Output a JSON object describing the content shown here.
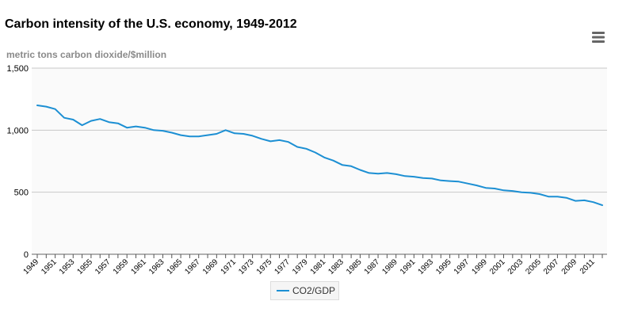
{
  "colors": {
    "series": "#1c8fd3",
    "grid": "#c8c8c8",
    "plot_background": "#fafafa",
    "axis_text": "#000000",
    "ylabel_text": "#8a8a8a"
  },
  "menu": {
    "icon": "hamburger-menu-icon"
  },
  "chart_data": {
    "type": "line",
    "title": "Carbon intensity of the U.S. economy, 1949-2012",
    "ylabel": "metric tons carbon dioxide/$million",
    "xlabel": "",
    "ylim": [
      0,
      1500
    ],
    "yticks": [
      0,
      500,
      1000,
      1500
    ],
    "ytick_labels": [
      "0",
      "500",
      "1,000",
      "1,500"
    ],
    "xlim": [
      1949,
      2012
    ],
    "xtick_labels": [
      "1949",
      "1951",
      "1953",
      "1955",
      "1957",
      "1959",
      "1961",
      "1963",
      "1965",
      "1967",
      "1969",
      "1971",
      "1973",
      "1975",
      "1977",
      "1979",
      "1981",
      "1983",
      "1985",
      "1987",
      "1989",
      "1991",
      "1993",
      "1995",
      "1997",
      "1999",
      "2001",
      "2003",
      "2005",
      "2007",
      "2009",
      "2011"
    ],
    "grid": true,
    "legend_position": "bottom-center",
    "series": [
      {
        "name": "CO2/GDP",
        "x": [
          1949,
          1950,
          1951,
          1952,
          1953,
          1954,
          1955,
          1956,
          1957,
          1958,
          1959,
          1960,
          1961,
          1962,
          1963,
          1964,
          1965,
          1966,
          1967,
          1968,
          1969,
          1970,
          1971,
          1972,
          1973,
          1974,
          1975,
          1976,
          1977,
          1978,
          1979,
          1980,
          1981,
          1982,
          1983,
          1984,
          1985,
          1986,
          1987,
          1988,
          1989,
          1990,
          1991,
          1992,
          1993,
          1994,
          1995,
          1996,
          1997,
          1998,
          1999,
          2000,
          2001,
          2002,
          2003,
          2004,
          2005,
          2006,
          2007,
          2008,
          2009,
          2010,
          2011,
          2012
        ],
        "values": [
          1200,
          1190,
          1170,
          1100,
          1085,
          1040,
          1075,
          1090,
          1065,
          1055,
          1020,
          1030,
          1020,
          1000,
          995,
          980,
          960,
          950,
          950,
          960,
          970,
          1000,
          975,
          970,
          955,
          930,
          910,
          920,
          905,
          865,
          850,
          820,
          780,
          755,
          720,
          710,
          680,
          655,
          650,
          655,
          645,
          630,
          625,
          615,
          610,
          595,
          590,
          585,
          570,
          555,
          535,
          530,
          515,
          510,
          500,
          495,
          485,
          465,
          465,
          455,
          430,
          435,
          420,
          395
        ]
      }
    ]
  }
}
